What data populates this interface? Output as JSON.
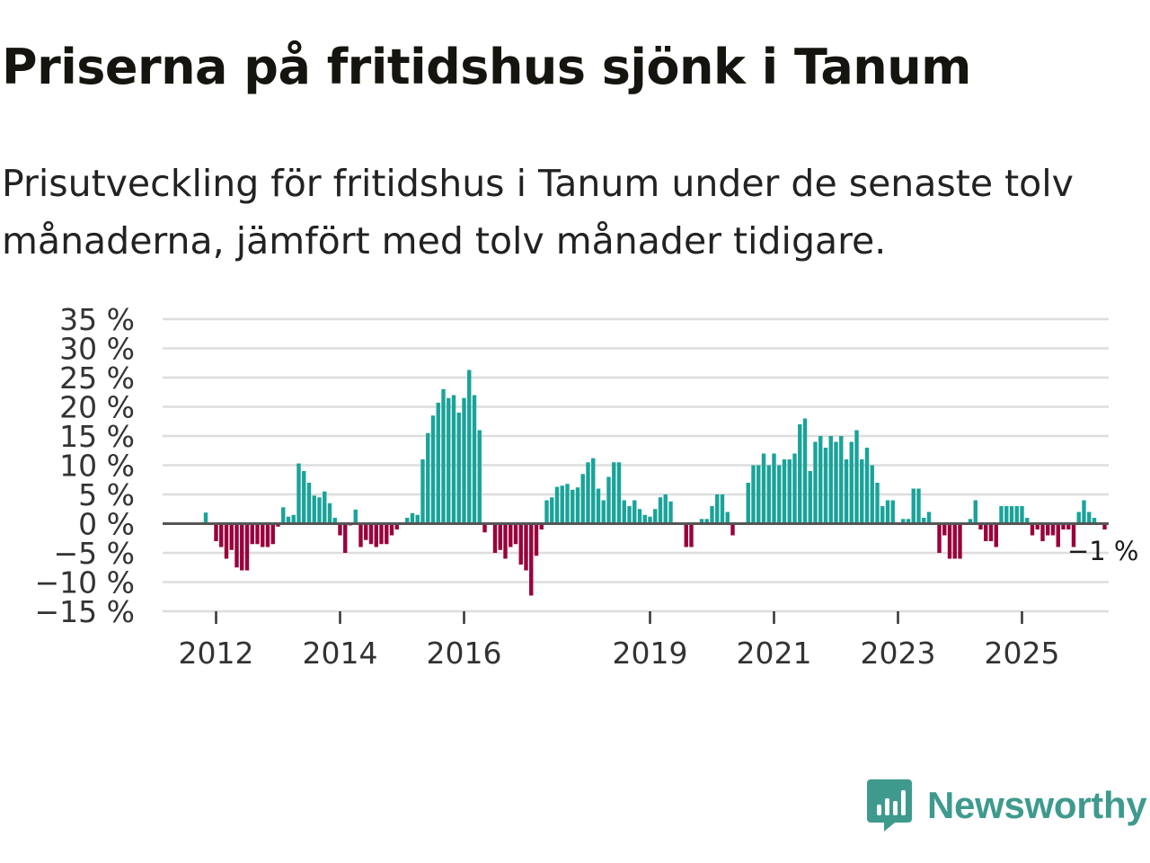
{
  "header": {
    "title": "Priserna på fritidshus sjönk i Tanum",
    "subtitle": "Prisutveckling för fritidshus i Tanum under de senaste tolv månaderna, jämfört med tolv månader tidigare."
  },
  "brand": {
    "name": "Newsworthy",
    "color": "#3f9a8e"
  },
  "colors": {
    "positive": "#1aa39a",
    "negative": "#99003b",
    "grid": "#dddddd",
    "zero_line": "#555555"
  },
  "chart_data": {
    "type": "bar",
    "title": "Priserna på fritidshus sjönk i Tanum",
    "xlabel": "",
    "ylabel": "",
    "ylim": [
      -15,
      35
    ],
    "y_ticks": [
      35,
      30,
      25,
      20,
      15,
      10,
      5,
      0,
      -5,
      -10,
      -15
    ],
    "y_tick_labels": [
      "35 %",
      "30 %",
      "25 %",
      "20 %",
      "15 %",
      "10 %",
      "5 %",
      "0 %",
      "−5 %",
      "−10 %",
      "−15 %"
    ],
    "x_ticks": [
      "2012",
      "2014",
      "2016",
      "2019",
      "2021",
      "2023",
      "2025"
    ],
    "start": "2011-11",
    "frequency": "monthly",
    "grid": true,
    "last_value_label": "−1 %",
    "values": [
      1.9,
      0,
      -3.0,
      -4.0,
      -6.0,
      -4.5,
      -7.5,
      -8.0,
      -8.0,
      -3.5,
      -3.5,
      -4.0,
      -4.0,
      -3.5,
      -0.5,
      2.8,
      1.2,
      1.5,
      10.3,
      9.0,
      7.0,
      4.8,
      4.5,
      5.5,
      3.5,
      1.0,
      -2.0,
      -5.0,
      -0.3,
      2.4,
      -4.0,
      -2.8,
      -3.5,
      -4.0,
      -3.5,
      -3.5,
      -2.0,
      -1.0,
      0,
      1.0,
      1.8,
      1.5,
      11.0,
      15.5,
      18.5,
      20.7,
      23.0,
      21.5,
      22.0,
      19.0,
      21.5,
      26.3,
      22.0,
      16.0,
      -1.5,
      0,
      -5.0,
      -4.5,
      -6.0,
      -4.0,
      -3.5,
      -7.0,
      -8.0,
      -12.3,
      -5.5,
      -1.0,
      4.0,
      4.5,
      6.3,
      6.5,
      6.8,
      5.8,
      6.2,
      8.5,
      10.5,
      11.2,
      6.0,
      4.0,
      8.0,
      10.5,
      10.5,
      4.0,
      3.0,
      4.0,
      2.5,
      1.5,
      1.2,
      2.5,
      4.5,
      5.0,
      3.8,
      0,
      0,
      -4.0,
      -4.0,
      0,
      0.8,
      0.8,
      3.0,
      5.0,
      5.0,
      2.0,
      -2.0,
      0,
      0,
      7.0,
      10.0,
      10.0,
      12.0,
      10.0,
      12.0,
      10.0,
      11.0,
      11.0,
      12.0,
      17.0,
      18.0,
      9.0,
      14.0,
      15.0,
      13.0,
      15.0,
      14.0,
      15.0,
      11.0,
      14.0,
      16.0,
      11.0,
      13.0,
      10.0,
      7.0,
      3.0,
      4.0,
      4.0,
      0,
      0.8,
      0.8,
      6.0,
      6.0,
      1.0,
      2.0,
      0,
      -5.0,
      -2.0,
      -6.0,
      -6.0,
      -6.0,
      0,
      0.8,
      4.0,
      -1.0,
      -3.0,
      -3.0,
      -4.0,
      3.0,
      3.0,
      3.0,
      3.0,
      3.0,
      1.0,
      -2.0,
      -1.0,
      -3.0,
      -2.0,
      -2.0,
      -4.0,
      -1.0,
      -1.0,
      -4.0,
      2.0,
      4.0,
      2.0,
      1.0,
      0,
      -1.0
    ]
  }
}
